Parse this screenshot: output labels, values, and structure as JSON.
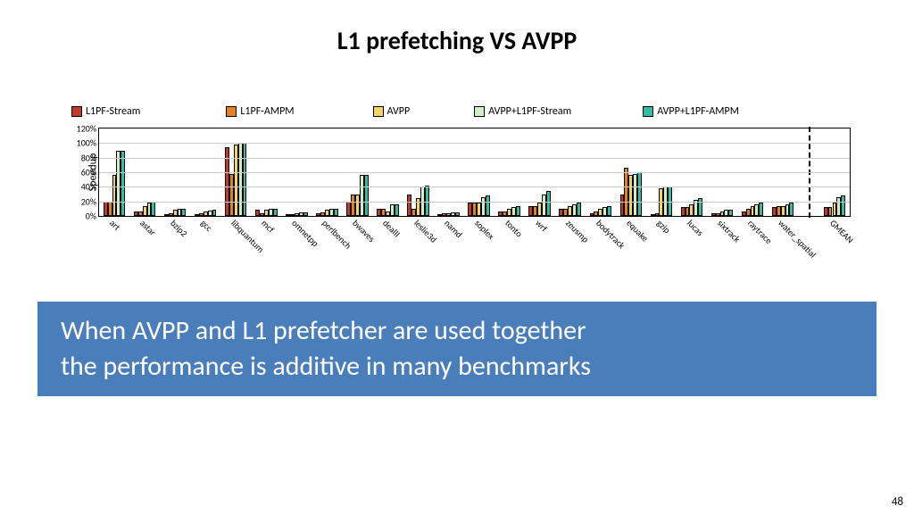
{
  "title": {
    "text": "L1 prefetching VS AVPP",
    "fontsize": 28,
    "color": "#000000",
    "weight": 700
  },
  "chart": {
    "type": "bar",
    "background_color": "#ffffff",
    "grid_color": "#cccccc",
    "axis_color": "#000000",
    "label_fontsize": 10,
    "ylabel": "Speedup",
    "ylabel_fontsize": 12,
    "ylim": [
      0,
      120
    ],
    "ytick_step": 20,
    "ytick_suffix": "%",
    "legend": {
      "fontsize": 12,
      "position": "top"
    },
    "series": [
      {
        "name": "L1PF-Stream",
        "color": "#c0392b"
      },
      {
        "name": "L1PF-AMPM",
        "color": "#e67e22"
      },
      {
        "name": "AVPP",
        "color": "#f4d35e"
      },
      {
        "name": "AVPP+L1PF-Stream",
        "color": "#d4edc9"
      },
      {
        "name": "AVPP+L1PF-AMPM",
        "color": "#2ebfa5"
      }
    ],
    "categories": [
      "art",
      "astar",
      "bzip2",
      "gcc",
      "libquantum",
      "mcf",
      "omnetpp",
      "perlbench",
      "bwaves",
      "dealII",
      "leslie3d",
      "namd",
      "soplex",
      "tonto",
      "wrf",
      "zeusmp",
      "bodytrack",
      "equake",
      "gzip",
      "lucas",
      "sixtrack",
      "raytrace",
      "water_spatial",
      "GMEAN"
    ],
    "separator_before": "GMEAN",
    "bar_outline": "#000000",
    "bar_group_gap": 0.28,
    "values": {
      "art": [
        20,
        20,
        56,
        90,
        90
      ],
      "astar": [
        6,
        6,
        14,
        18,
        20
      ],
      "bzip2": [
        3,
        4,
        8,
        10,
        10
      ],
      "gcc": [
        3,
        4,
        6,
        7,
        8
      ],
      "libquantum": [
        94,
        58,
        98,
        100,
        100
      ],
      "mcf": [
        8,
        4,
        8,
        10,
        10
      ],
      "omnetpp": [
        3,
        3,
        4,
        5,
        5
      ],
      "perlbench": [
        4,
        5,
        8,
        10,
        10
      ],
      "bwaves": [
        20,
        30,
        30,
        56,
        56
      ],
      "dealII": [
        10,
        10,
        6,
        16,
        16
      ],
      "leslie3d": [
        30,
        10,
        24,
        40,
        42
      ],
      "namd": [
        3,
        4,
        4,
        5,
        5
      ],
      "soplex": [
        18,
        18,
        18,
        26,
        28
      ],
      "tonto": [
        6,
        6,
        10,
        12,
        14
      ],
      "wrf": [
        14,
        14,
        18,
        30,
        34
      ],
      "zeusmp": [
        10,
        10,
        14,
        16,
        18
      ],
      "bodytrack": [
        4,
        6,
        10,
        12,
        14
      ],
      "equake": [
        30,
        66,
        56,
        58,
        60
      ],
      "gzip": [
        2,
        4,
        38,
        40,
        40
      ],
      "lucas": [
        12,
        12,
        16,
        22,
        24
      ],
      "sixtrack": [
        4,
        4,
        6,
        8,
        8
      ],
      "raytrace": [
        6,
        10,
        14,
        16,
        18
      ],
      "water_spatial": [
        12,
        14,
        14,
        16,
        18
      ],
      "GMEAN": [
        12,
        12,
        18,
        26,
        28
      ]
    }
  },
  "callout": {
    "background": "#4a7ebb",
    "text_color": "#ffffff",
    "fontsize": 30,
    "line1": "When AVPP and L1 prefetcher are used together",
    "line2": "the performance is additive in many benchmarks"
  },
  "page_number": "48"
}
